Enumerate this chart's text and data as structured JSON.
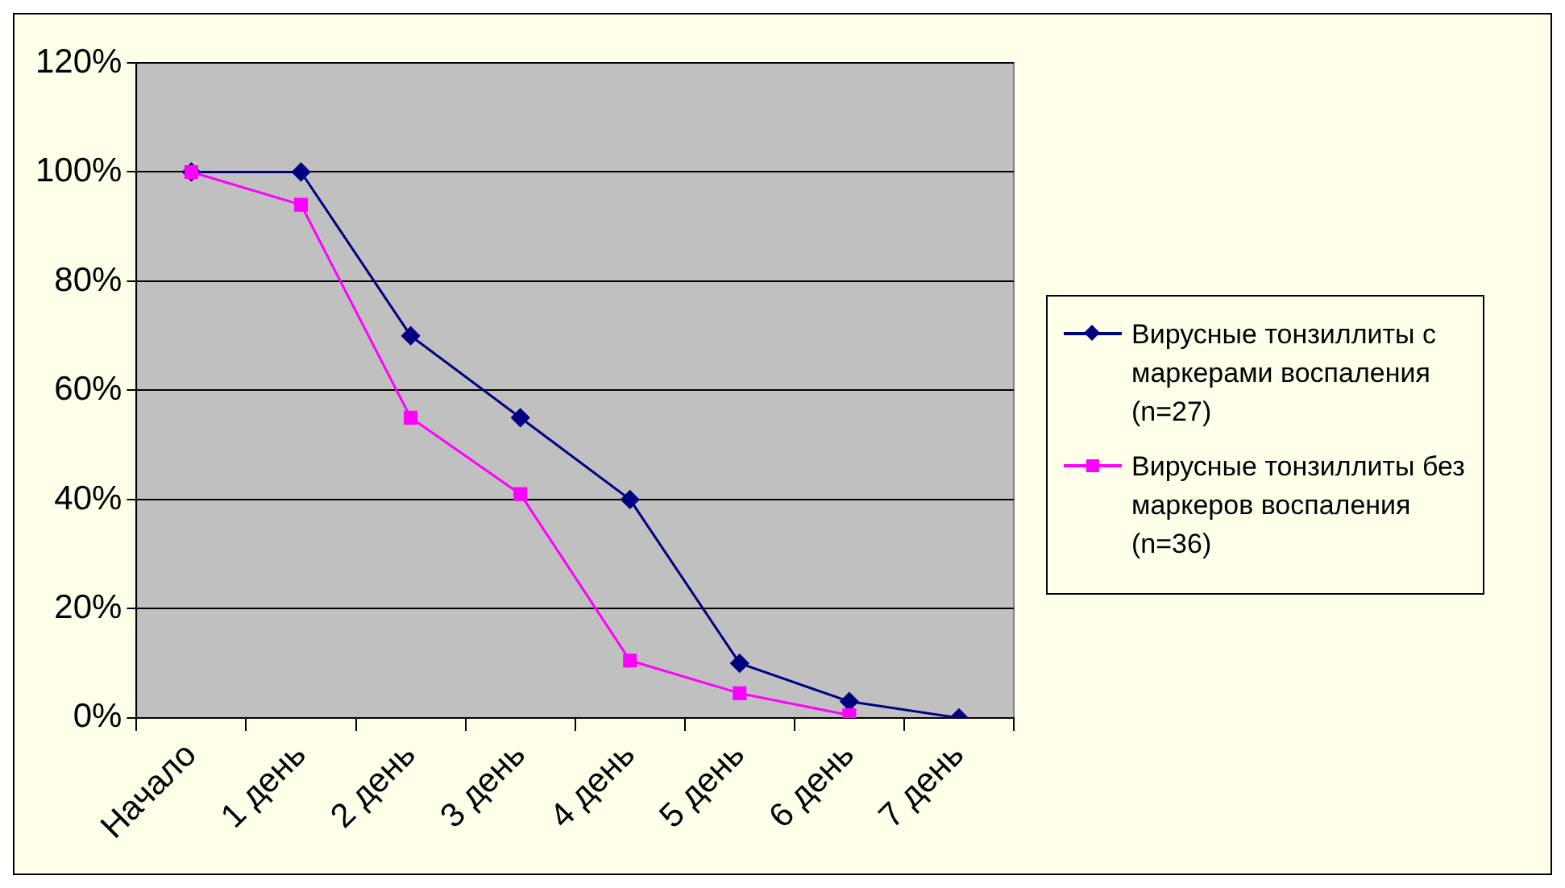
{
  "chart_data": {
    "type": "line",
    "categories": [
      "Начало",
      "1 день",
      "2 день",
      "3 день",
      "4 день",
      "5 день",
      "6 день",
      "7 день"
    ],
    "series": [
      {
        "name": "Вирусные тонзиллиты с маркерами воспаления (n=27)",
        "color": "#000080",
        "marker": "diamond",
        "values": [
          100,
          100,
          70,
          55,
          40,
          10,
          3,
          0
        ]
      },
      {
        "name": "Вирусные тонзиллиты без маркеров воспаления (n=36)",
        "color": "#ff00ff",
        "marker": "square",
        "values": [
          100,
          94,
          55,
          41,
          10.5,
          4.5,
          0.5,
          null
        ]
      }
    ],
    "ylim": [
      0,
      120
    ],
    "yticks": [
      {
        "value": 0,
        "label": "0%"
      },
      {
        "value": 20,
        "label": "20%"
      },
      {
        "value": 40,
        "label": "40%"
      },
      {
        "value": 60,
        "label": "60%"
      },
      {
        "value": 80,
        "label": "80%"
      },
      {
        "value": 100,
        "label": "100%"
      },
      {
        "value": 120,
        "label": "120%"
      }
    ],
    "grid": "y",
    "legend": "right"
  }
}
